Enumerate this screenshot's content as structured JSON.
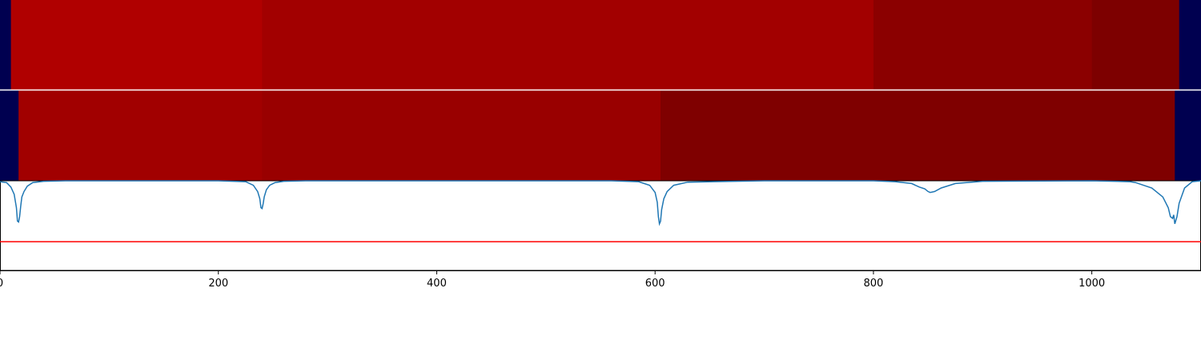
{
  "chart_data": [
    {
      "type": "heatmap",
      "panel": "track-1",
      "xlim": [
        0,
        1100
      ],
      "segments": [
        {
          "start": 0,
          "end": 10,
          "color": "#000050"
        },
        {
          "start": 10,
          "end": 240,
          "color": "#b00000"
        },
        {
          "start": 240,
          "end": 800,
          "color": "#a20000"
        },
        {
          "start": 800,
          "end": 1000,
          "color": "#8b0000"
        },
        {
          "start": 1000,
          "end": 1080,
          "color": "#7d0000"
        },
        {
          "start": 1080,
          "end": 1100,
          "color": "#000050"
        }
      ]
    },
    {
      "type": "heatmap",
      "panel": "track-2",
      "xlim": [
        0,
        1100
      ],
      "segments": [
        {
          "start": 0,
          "end": 17,
          "color": "#000050"
        },
        {
          "start": 17,
          "end": 240,
          "color": "#a10000"
        },
        {
          "start": 240,
          "end": 605,
          "color": "#990000"
        },
        {
          "start": 605,
          "end": 1076,
          "color": "#7f0000"
        },
        {
          "start": 1076,
          "end": 1100,
          "color": "#000050"
        }
      ]
    },
    {
      "type": "line",
      "panel": "signal",
      "xlim": [
        0,
        1100
      ],
      "ylim": [
        0,
        1
      ],
      "xticks": [
        0,
        200,
        400,
        600,
        800,
        1000
      ],
      "threshold": {
        "value": 0.32,
        "color": "#ff0000"
      },
      "series": [
        {
          "color": "#1f77b4",
          "x": [
            0,
            6,
            10,
            13,
            15,
            16,
            17,
            18,
            19,
            20,
            22,
            25,
            30,
            40,
            60,
            100,
            200,
            225,
            232,
            236,
            238,
            239,
            240,
            241,
            242,
            244,
            247,
            252,
            260,
            280,
            400,
            560,
            585,
            595,
            600,
            602,
            603,
            604,
            605,
            606,
            608,
            611,
            617,
            630,
            700,
            800,
            820,
            835,
            842,
            847,
            850,
            852,
            856,
            862,
            875,
            900,
            1000,
            1035,
            1040,
            1055,
            1065,
            1070,
            1072,
            1074,
            1075,
            1076,
            1078,
            1080,
            1085,
            1092,
            1100
          ],
          "y": [
            0.99,
            0.98,
            0.93,
            0.85,
            0.7,
            0.55,
            0.54,
            0.6,
            0.72,
            0.82,
            0.88,
            0.94,
            0.98,
            0.995,
            1,
            1,
            1,
            0.99,
            0.95,
            0.88,
            0.8,
            0.7,
            0.69,
            0.74,
            0.82,
            0.9,
            0.95,
            0.98,
            0.995,
            1,
            1,
            1,
            0.99,
            0.95,
            0.87,
            0.76,
            0.6,
            0.52,
            0.55,
            0.68,
            0.8,
            0.88,
            0.95,
            0.985,
            1,
            1,
            0.99,
            0.97,
            0.93,
            0.91,
            0.88,
            0.87,
            0.88,
            0.92,
            0.97,
            0.995,
            1,
            0.99,
            0.98,
            0.92,
            0.82,
            0.7,
            0.6,
            0.58,
            0.62,
            0.52,
            0.6,
            0.75,
            0.92,
            0.99,
            1
          ]
        }
      ]
    }
  ]
}
